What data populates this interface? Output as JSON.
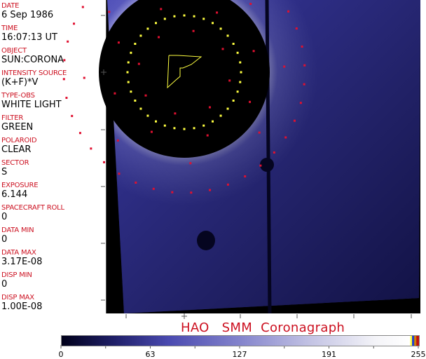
{
  "info_panel": [
    {
      "label": "DATE",
      "value": "6 Sep 1986"
    },
    {
      "label": "TIME",
      "value": "16:07:13 UT"
    },
    {
      "label": "OBJECT",
      "value": "SUN:CORONA"
    },
    {
      "label": "INTENSITY SOURCE",
      "value": "(K+F)*V"
    },
    {
      "label": "TYPE-OBS",
      "value": "WHITE LIGHT"
    },
    {
      "label": "FILTER",
      "value": "GREEN"
    },
    {
      "label": "POLAROID",
      "value": "CLEAR"
    },
    {
      "label": "SECTOR",
      "value": "S"
    },
    {
      "label": "EXPOSURE",
      "value": "6.144"
    },
    {
      "label": "SPACECRAFT ROLL",
      "value": "0"
    },
    {
      "label": "DATA MIN",
      "value": "0"
    },
    {
      "label": "DATA MAX",
      "value": "3.17E-08"
    },
    {
      "label": "DISP MIN",
      "value": "0"
    },
    {
      "label": "DISP MAX",
      "value": "1.00E-08"
    }
  ],
  "title": "HAO   SMM  Coronagraph",
  "colorbar": {
    "ticks": [
      "0",
      "63",
      "127",
      "191",
      "255"
    ],
    "colors": {
      "low": "#00001a",
      "mid": "#4a4ab0",
      "high": "#ffffff"
    }
  },
  "overlay_colors": {
    "yellow": "#ffff40",
    "red": "#e01030",
    "field": "#3a3aa8"
  }
}
